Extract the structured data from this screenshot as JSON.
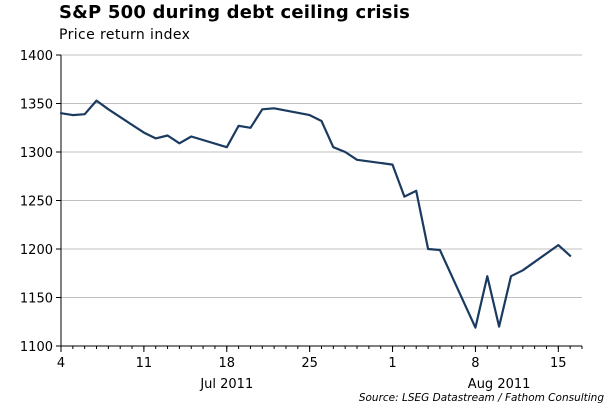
{
  "chart_data": {
    "type": "line",
    "title": "S&P 500 during debt ceiling crisis",
    "subtitle": "Price return index",
    "source": "Source: LSEG Datastream / Fathom Consulting",
    "ylim": [
      1100,
      1400
    ],
    "yticks": [
      1100,
      1150,
      1200,
      1250,
      1300,
      1350,
      1400
    ],
    "xlim": [
      "2011-07-04",
      "2011-08-17"
    ],
    "xticks": [
      {
        "date": "2011-07-04",
        "label": "4"
      },
      {
        "date": "2011-07-11",
        "label": "11"
      },
      {
        "date": "2011-07-18",
        "label": "18"
      },
      {
        "date": "2011-07-25",
        "label": "25"
      },
      {
        "date": "2011-08-01",
        "label": "1"
      },
      {
        "date": "2011-08-08",
        "label": "8"
      },
      {
        "date": "2011-08-15",
        "label": "15"
      }
    ],
    "months": [
      {
        "label": "Jul 2011",
        "center_date": "2011-07-18"
      },
      {
        "label": "Aug 2011",
        "center_date": "2011-08-10"
      }
    ],
    "grid": {
      "horizontal": true,
      "vertical": false
    },
    "line_color": "#1a3a60",
    "series": [
      {
        "x": [
          "2011-07-04",
          "2011-07-05",
          "2011-07-06",
          "2011-07-07",
          "2011-07-08",
          "2011-07-11",
          "2011-07-12",
          "2011-07-13",
          "2011-07-14",
          "2011-07-15",
          "2011-07-18",
          "2011-07-19",
          "2011-07-20",
          "2011-07-21",
          "2011-07-22",
          "2011-07-25",
          "2011-07-26",
          "2011-07-27",
          "2011-07-28",
          "2011-07-29",
          "2011-08-01",
          "2011-08-02",
          "2011-08-03",
          "2011-08-04",
          "2011-08-05",
          "2011-08-08",
          "2011-08-09",
          "2011-08-10",
          "2011-08-11",
          "2011-08-12",
          "2011-08-15",
          "2011-08-16"
        ],
        "y": [
          1340,
          1338,
          1339,
          1353,
          1344,
          1320,
          1314,
          1317,
          1309,
          1316,
          1305,
          1327,
          1325,
          1344,
          1345,
          1338,
          1332,
          1305,
          1300,
          1292,
          1287,
          1254,
          1260,
          1200,
          1199,
          1119,
          1172,
          1120,
          1172,
          1178,
          1204,
          1193
        ]
      }
    ]
  }
}
